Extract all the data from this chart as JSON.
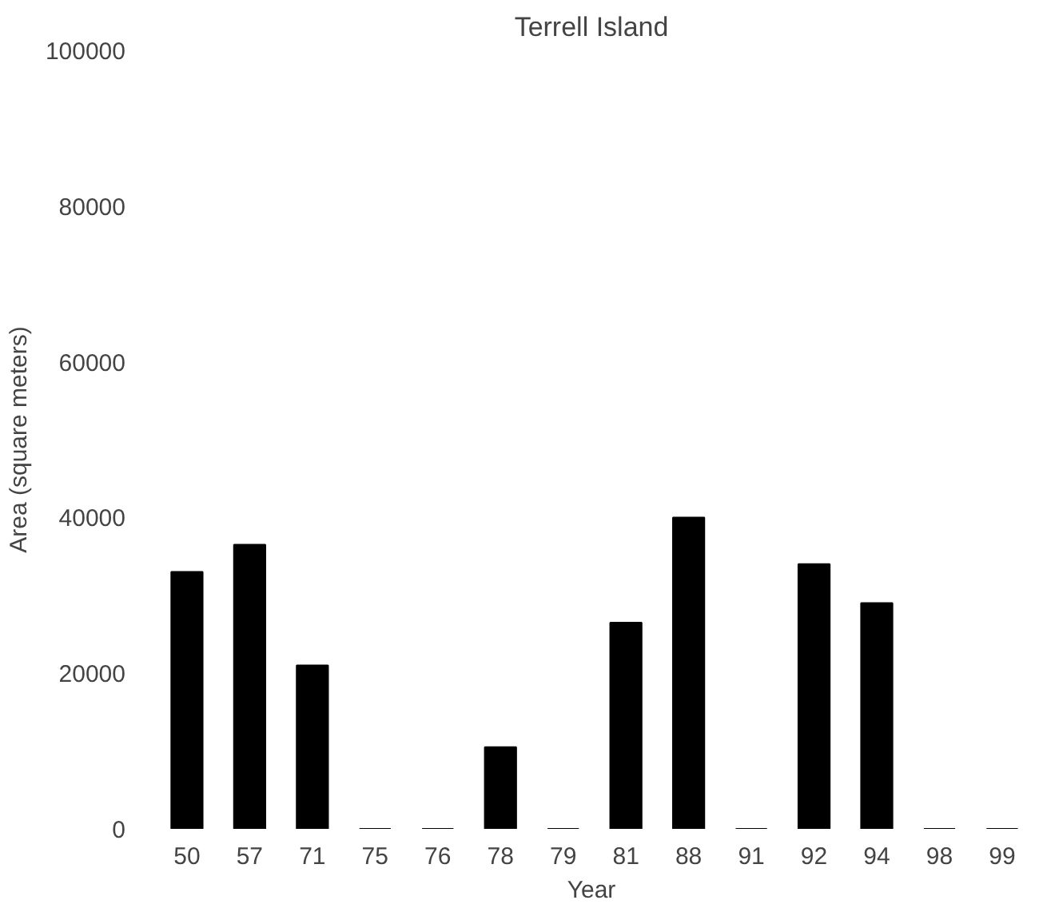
{
  "chart_data": {
    "type": "bar",
    "title": "Terrell Island",
    "xlabel": "Year",
    "ylabel": "Area (square meters)",
    "categories": [
      "50",
      "57",
      "71",
      "75",
      "76",
      "78",
      "79",
      "81",
      "88",
      "91",
      "92",
      "94",
      "98",
      "99"
    ],
    "values": [
      33000,
      36500,
      21000,
      0,
      0,
      10500,
      0,
      26500,
      40000,
      0,
      34000,
      29000,
      0,
      0
    ],
    "color": "#000000",
    "ylim": [
      0,
      100000
    ],
    "yticks": [
      0,
      20000,
      40000,
      60000,
      80000,
      100000
    ],
    "grid": false
  }
}
